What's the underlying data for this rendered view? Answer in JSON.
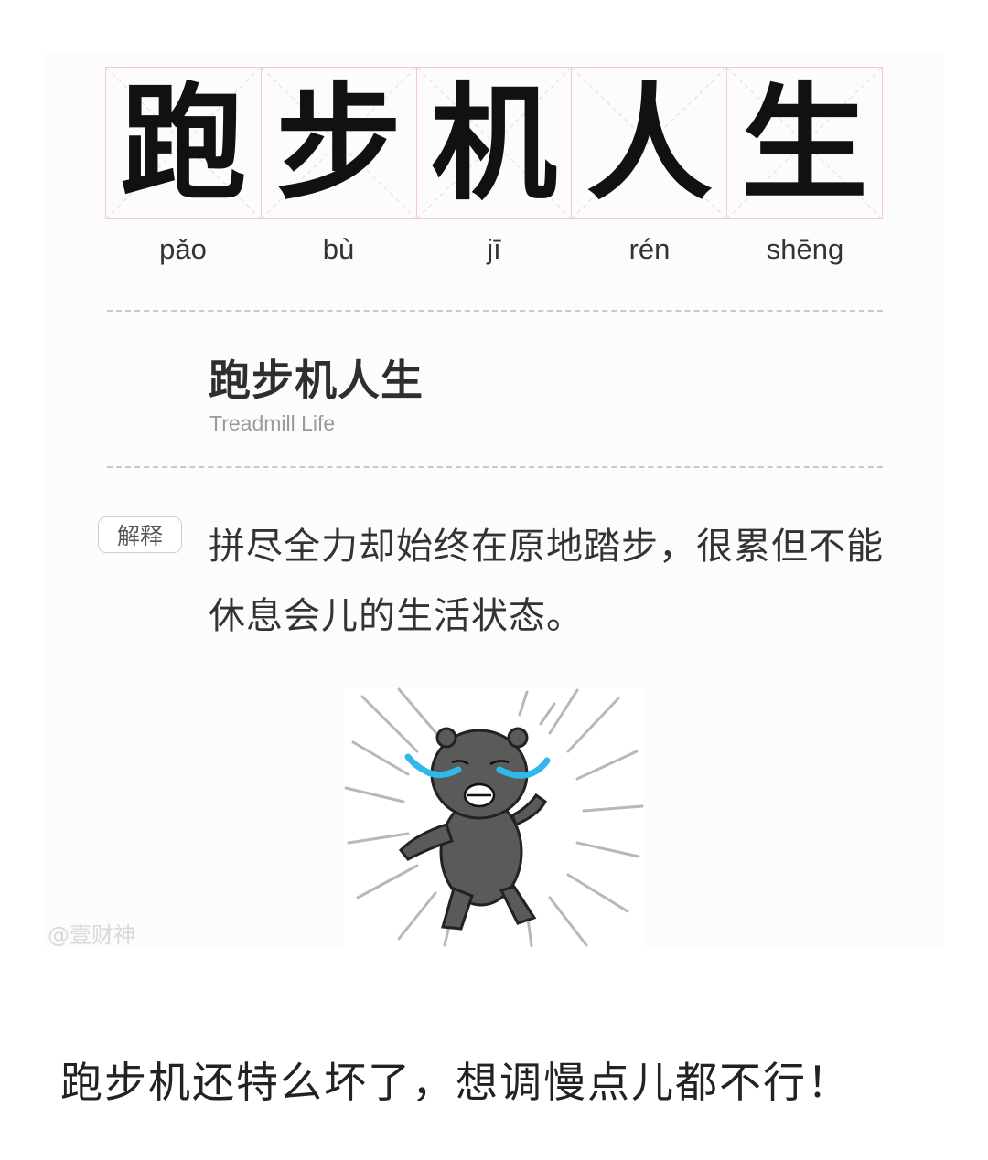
{
  "header": {
    "characters": [
      {
        "hanzi": "跑",
        "pinyin": "pǎo"
      },
      {
        "hanzi": "步",
        "pinyin": "bù"
      },
      {
        "hanzi": "机",
        "pinyin": "jī"
      },
      {
        "hanzi": "人",
        "pinyin": "rén"
      },
      {
        "hanzi": "生",
        "pinyin": "shēng"
      }
    ]
  },
  "term": {
    "title": "跑步机人生",
    "english": "Treadmill Life"
  },
  "definition": {
    "badge_label": "解释",
    "text": "拼尽全力却始终在原地踏步，很累但不能休息会儿的生活状态。"
  },
  "illustration": {
    "icon": "crying-bear-sticker"
  },
  "watermark": "@壹财神",
  "caption": "跑步机还特么坏了，想调慢点儿都不行！"
}
